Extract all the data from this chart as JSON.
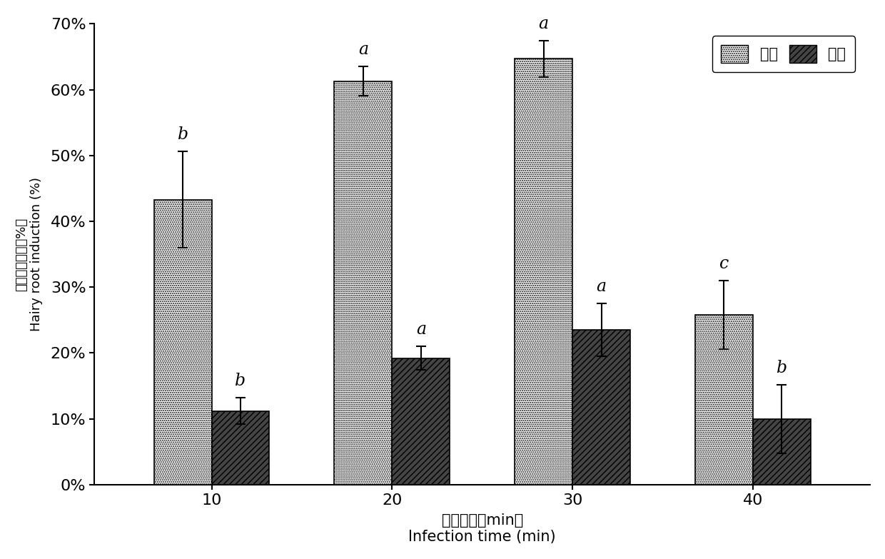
{
  "categories": [
    10,
    20,
    30,
    40
  ],
  "dark_values": [
    0.433,
    0.613,
    0.647,
    0.258
  ],
  "light_values": [
    0.112,
    0.192,
    0.235,
    0.1
  ],
  "dark_errors": [
    0.073,
    0.022,
    0.028,
    0.052
  ],
  "light_errors": [
    0.02,
    0.018,
    0.04,
    0.052
  ],
  "dark_labels": [
    "b",
    "a",
    "a",
    "c"
  ],
  "light_labels": [
    "b",
    "a",
    "a",
    "b"
  ],
  "legend_dark": "黑暗",
  "legend_light": "光照",
  "xlabel_cn": "侵染时间（min）",
  "xlabel_en": "Infection time (min)",
  "ylabel_cn": "毛状根诱导率（%）",
  "ylabel_en": "Hairy root induction (%)",
  "ylim": [
    0,
    0.7
  ],
  "yticks": [
    0.0,
    0.1,
    0.2,
    0.3,
    0.4,
    0.5,
    0.6,
    0.7
  ],
  "ytick_labels": [
    "0%",
    "10%",
    "20%",
    "30%",
    "40%",
    "50%",
    "60%",
    "70%"
  ],
  "bar_width": 0.32,
  "background_color": "#ffffff"
}
